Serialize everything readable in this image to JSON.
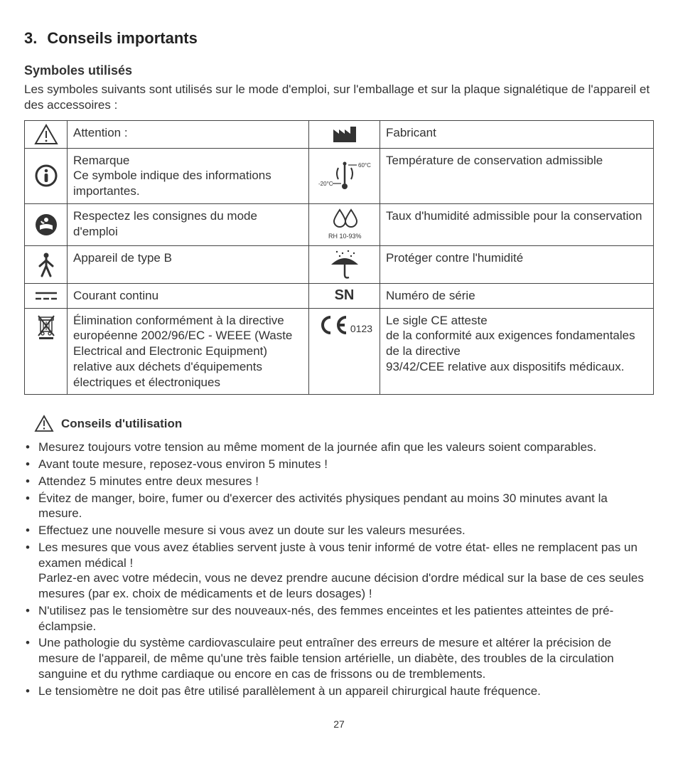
{
  "heading": {
    "number": "3.",
    "title": "Conseils importants"
  },
  "symbols_section": {
    "subheading": "Symboles utilisés",
    "intro": "Les symboles suivants sont utilisés sur le mode d'emploi, sur l'emballage et sur la plaque signalétique de l'appareil et des accessoires :",
    "rows": [
      {
        "left_icon": "warning-triangle",
        "left_text": "Attention :",
        "right_icon": "factory",
        "right_text": "Fabricant"
      },
      {
        "left_icon": "info-circle",
        "left_text": "Remarque\nCe symbole indique des informations importantes.",
        "right_icon": "thermometer-range",
        "right_labels": {
          "top": "60°C",
          "bottom": "-20°C"
        },
        "right_text": "Température de conservation admissible"
      },
      {
        "left_icon": "read-manual",
        "left_text": "Respectez les consignes du mode d'emploi",
        "right_icon": "humidity-drops",
        "right_labels": {
          "bottom": "RH 10-93%"
        },
        "right_text": "Taux d'humidité admissible pour la conservation"
      },
      {
        "left_icon": "type-b-person",
        "left_text": "Appareil de type B",
        "right_icon": "umbrella-rain",
        "right_text": "Protéger contre l'humidité"
      },
      {
        "left_icon": "dc-symbol",
        "left_text": "Courant continu",
        "right_icon": "sn-text",
        "right_labels": {
          "text": "SN"
        },
        "right_text": "Numéro de série"
      },
      {
        "left_icon": "weee-bin",
        "left_text": "Élimination conformément à la directive européenne 2002/96/EC - WEEE (Waste Electrical and Electronic Equipment) relative aux déchets d'équipements électriques et électroniques",
        "right_icon": "ce-mark",
        "right_labels": {
          "number": "0123"
        },
        "right_text": "Le sigle CE atteste\nde la conformité aux exigences fondamentales de la directive\n93/42/CEE relative aux dispositifs médicaux."
      }
    ]
  },
  "advice_section": {
    "heading_icon": "warning-triangle",
    "heading_label": "Conseils d'utilisation",
    "items": [
      "Mesurez toujours votre tension au même moment de la journée afin que les valeurs soient comparables.",
      "Avant toute mesure, reposez-vous environ 5 minutes !",
      "Attendez 5 minutes entre deux mesures !",
      "Évitez de manger, boire, fumer ou d'exercer des activités physiques pendant au moins 30 minutes avant la mesure.",
      "Effectuez une nouvelle mesure si vous avez un doute sur les valeurs mesurées.",
      "Les mesures que vous avez établies servent juste à vous tenir informé de votre état- elles ne remplacent pas un examen médical !\nParlez-en avec votre médecin, vous ne devez prendre aucune décision d'ordre médical sur la base de ces seules mesures (par ex. choix de médicaments et de leurs dosages) !",
      "N'utilisez pas le tensiomètre sur des nouveaux-nés, des femmes enceintes et les patientes atteintes de pré-éclampsie.",
      "Une pathologie du système cardiovasculaire peut entraîner des erreurs de mesure et altérer la précision de mesure de l'appareil, de même qu'une très faible tension artérielle, un diabète, des troubles de la circulation sanguine et du rythme cardiaque ou encore en cas de frissons ou de tremblements.",
      "Le tensiomètre ne doit pas être utilisé parallèlement à un appareil chirurgical haute fréquence."
    ]
  },
  "page_number": "27",
  "colors": {
    "text": "#333333",
    "border": "#444444",
    "background": "#ffffff",
    "icon": "#333333"
  }
}
